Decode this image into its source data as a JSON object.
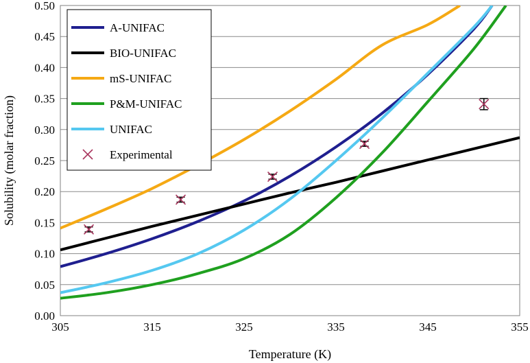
{
  "chart_data": {
    "type": "line",
    "title": "",
    "xlabel": "Temperature (K)",
    "ylabel": "Solubility (molar fraction)",
    "xlim": [
      305,
      355
    ],
    "ylim": [
      0,
      0.5
    ],
    "xticks": [
      305,
      315,
      325,
      335,
      345,
      355
    ],
    "yticks": [
      0.0,
      0.05,
      0.1,
      0.15,
      0.2,
      0.25,
      0.3,
      0.35,
      0.4,
      0.45,
      0.5
    ],
    "xtick_labels": [
      "305",
      "315",
      "325",
      "335",
      "345",
      "355"
    ],
    "ytick_labels": [
      "0.00",
      "0.05",
      "0.10",
      "0.15",
      "0.20",
      "0.25",
      "0.30",
      "0.35",
      "0.40",
      "0.45",
      "0.50"
    ],
    "grid": "horizontal",
    "legend_position": "top-left",
    "series": [
      {
        "name": "A-UNIFAC",
        "color": "#1f1f8f",
        "x": [
          305,
          310,
          315,
          320,
          325,
          330,
          335,
          340,
          345,
          350,
          352
        ],
        "y": [
          0.079,
          0.1,
          0.124,
          0.152,
          0.185,
          0.225,
          0.272,
          0.326,
          0.389,
          0.462,
          0.5
        ]
      },
      {
        "name": "BIO-UNIFAC",
        "color": "#000000",
        "x": [
          305,
          310,
          315,
          320,
          325,
          330,
          335,
          340,
          345,
          350,
          355
        ],
        "y": [
          0.106,
          0.125,
          0.144,
          0.162,
          0.18,
          0.198,
          0.215,
          0.233,
          0.251,
          0.269,
          0.287
        ]
      },
      {
        "name": "mS-UNIFAC",
        "color": "#f5a914",
        "x": [
          305,
          310,
          315,
          320,
          325,
          330,
          335,
          340,
          345,
          348.5
        ],
        "y": [
          0.141,
          0.172,
          0.205,
          0.243,
          0.284,
          0.33,
          0.381,
          0.436,
          0.469,
          0.5
        ]
      },
      {
        "name": "P&M-UNIFAC",
        "color": "#1fa01f",
        "x": [
          305,
          310,
          315,
          320,
          325,
          330,
          335,
          340,
          345,
          350,
          353.5
        ],
        "y": [
          0.028,
          0.037,
          0.05,
          0.068,
          0.092,
          0.131,
          0.19,
          0.262,
          0.345,
          0.43,
          0.5
        ]
      },
      {
        "name": "UNIFAC",
        "color": "#55c8f0",
        "x": [
          305,
          310,
          315,
          320,
          325,
          330,
          335,
          340,
          345,
          350,
          352
        ],
        "y": [
          0.037,
          0.053,
          0.073,
          0.1,
          0.138,
          0.188,
          0.25,
          0.318,
          0.391,
          0.465,
          0.5
        ]
      }
    ],
    "experimental": {
      "name": "Experimental",
      "color": "#a8345c",
      "x": [
        308.1,
        318.1,
        328.1,
        338.1,
        351.1
      ],
      "y": [
        0.139,
        0.187,
        0.224,
        0.277,
        0.341
      ],
      "err": [
        0.004,
        0.004,
        0.004,
        0.004,
        0.009
      ]
    }
  }
}
